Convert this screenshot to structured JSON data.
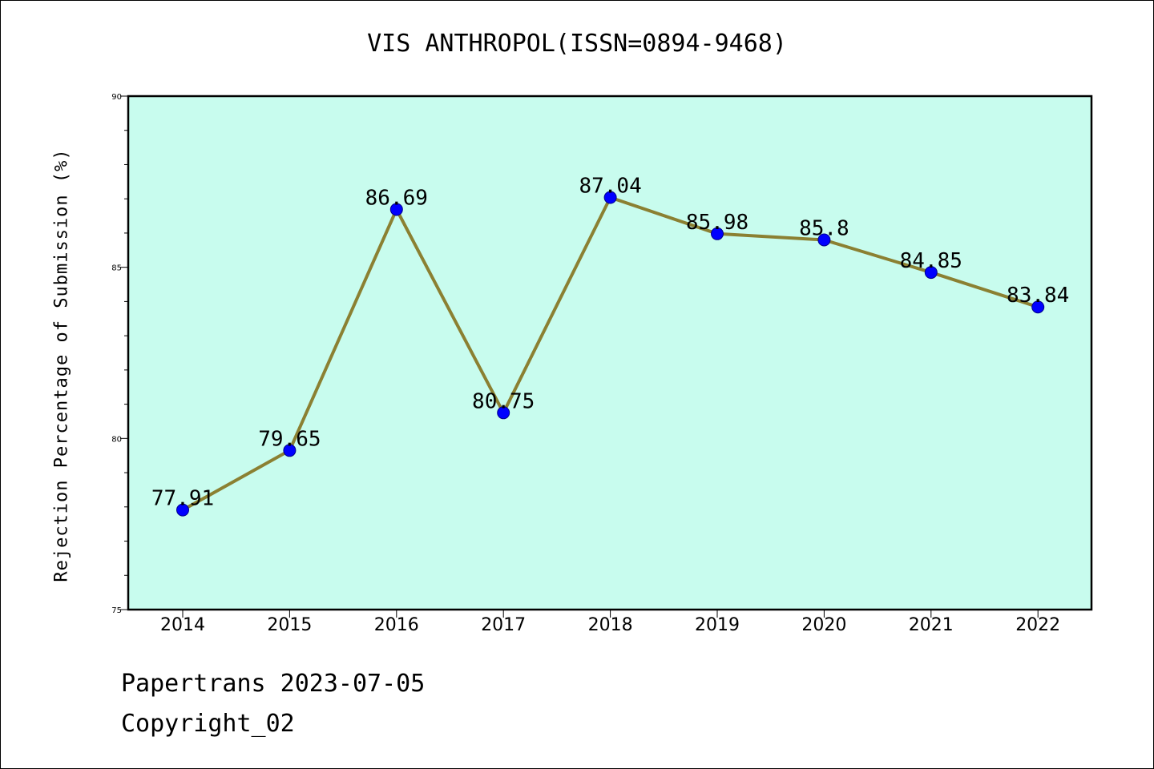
{
  "chart_data": {
    "type": "line",
    "title": "VIS ANTHROPOL(ISSN=0894-9468)",
    "xlabel": "",
    "ylabel": "Rejection Percentage of Submission (%)",
    "categories": [
      "2014",
      "2015",
      "2016",
      "2017",
      "2018",
      "2019",
      "2020",
      "2021",
      "2022"
    ],
    "series": [
      {
        "values": [
          77.91,
          79.65,
          86.69,
          80.75,
          87.04,
          85.98,
          85.8,
          84.85,
          83.84
        ],
        "labels": [
          "77.91",
          "79.65",
          "86.69",
          "80.75",
          "87.04",
          "85.98",
          "85.8",
          "84.85",
          "83.84"
        ]
      }
    ],
    "ylim": [
      75,
      90
    ],
    "yticks": [
      75,
      80,
      85,
      90
    ],
    "ytick_labels": [
      "75",
      "80",
      "85",
      "90"
    ],
    "grid": false,
    "colors": {
      "plot_background": "#c8fcee",
      "line": "#8b8032",
      "marker": "#0000ff"
    }
  },
  "footer": {
    "line1": "Papertrans 2023-07-05",
    "line2": "Copyright_02"
  }
}
